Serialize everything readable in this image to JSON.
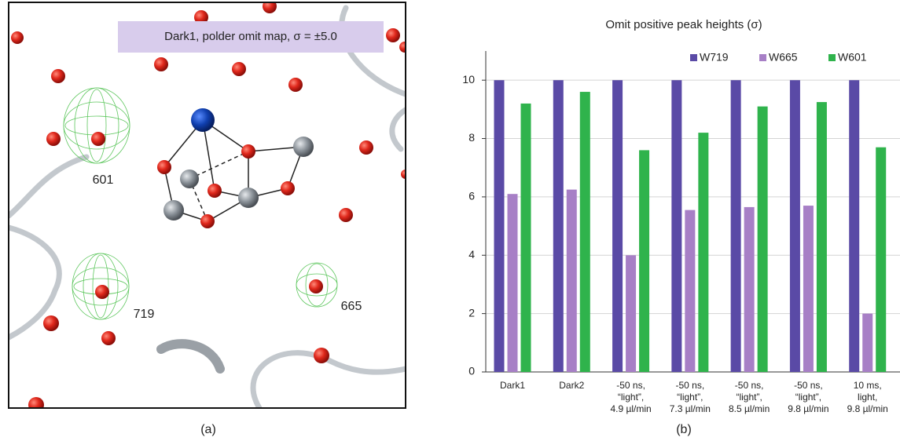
{
  "panel_a": {
    "label": "Dark1, polder omit map, σ = ±5.0",
    "residues": [
      "601",
      "719",
      "665"
    ],
    "caption": "(a)"
  },
  "chart_data": {
    "type": "bar",
    "title": "Omit positive peak heights  (σ)",
    "caption": "(b)",
    "categories": [
      [
        "Dark1"
      ],
      [
        "Dark2"
      ],
      [
        "-50 ns,",
        "“light”,",
        "4.9 µl/min"
      ],
      [
        "-50 ns,",
        "“light”,",
        "7.3 µl/min"
      ],
      [
        "-50 ns,",
        "“light”,",
        "8.5 µl/min"
      ],
      [
        "-50 ns,",
        "“light”,",
        "9.8 µl/min"
      ],
      [
        "10 ms,",
        "light,",
        "9.8 µl/min"
      ]
    ],
    "series": [
      {
        "name": "W719",
        "color": "#5a4aa6",
        "values": [
          10,
          10,
          10,
          10,
          10,
          10,
          10
        ]
      },
      {
        "name": "W665",
        "color": "#a77fc6",
        "values": [
          6.1,
          6.25,
          4.0,
          5.55,
          5.65,
          5.7,
          2.0
        ]
      },
      {
        "name": "W601",
        "color": "#2fb34c",
        "values": [
          9.2,
          9.6,
          7.6,
          8.2,
          9.1,
          9.25,
          7.7
        ]
      }
    ],
    "ylim": [
      0,
      11
    ],
    "yticks": [
      0,
      2,
      4,
      6,
      8,
      10
    ],
    "grid": true,
    "legend": "top-right"
  }
}
